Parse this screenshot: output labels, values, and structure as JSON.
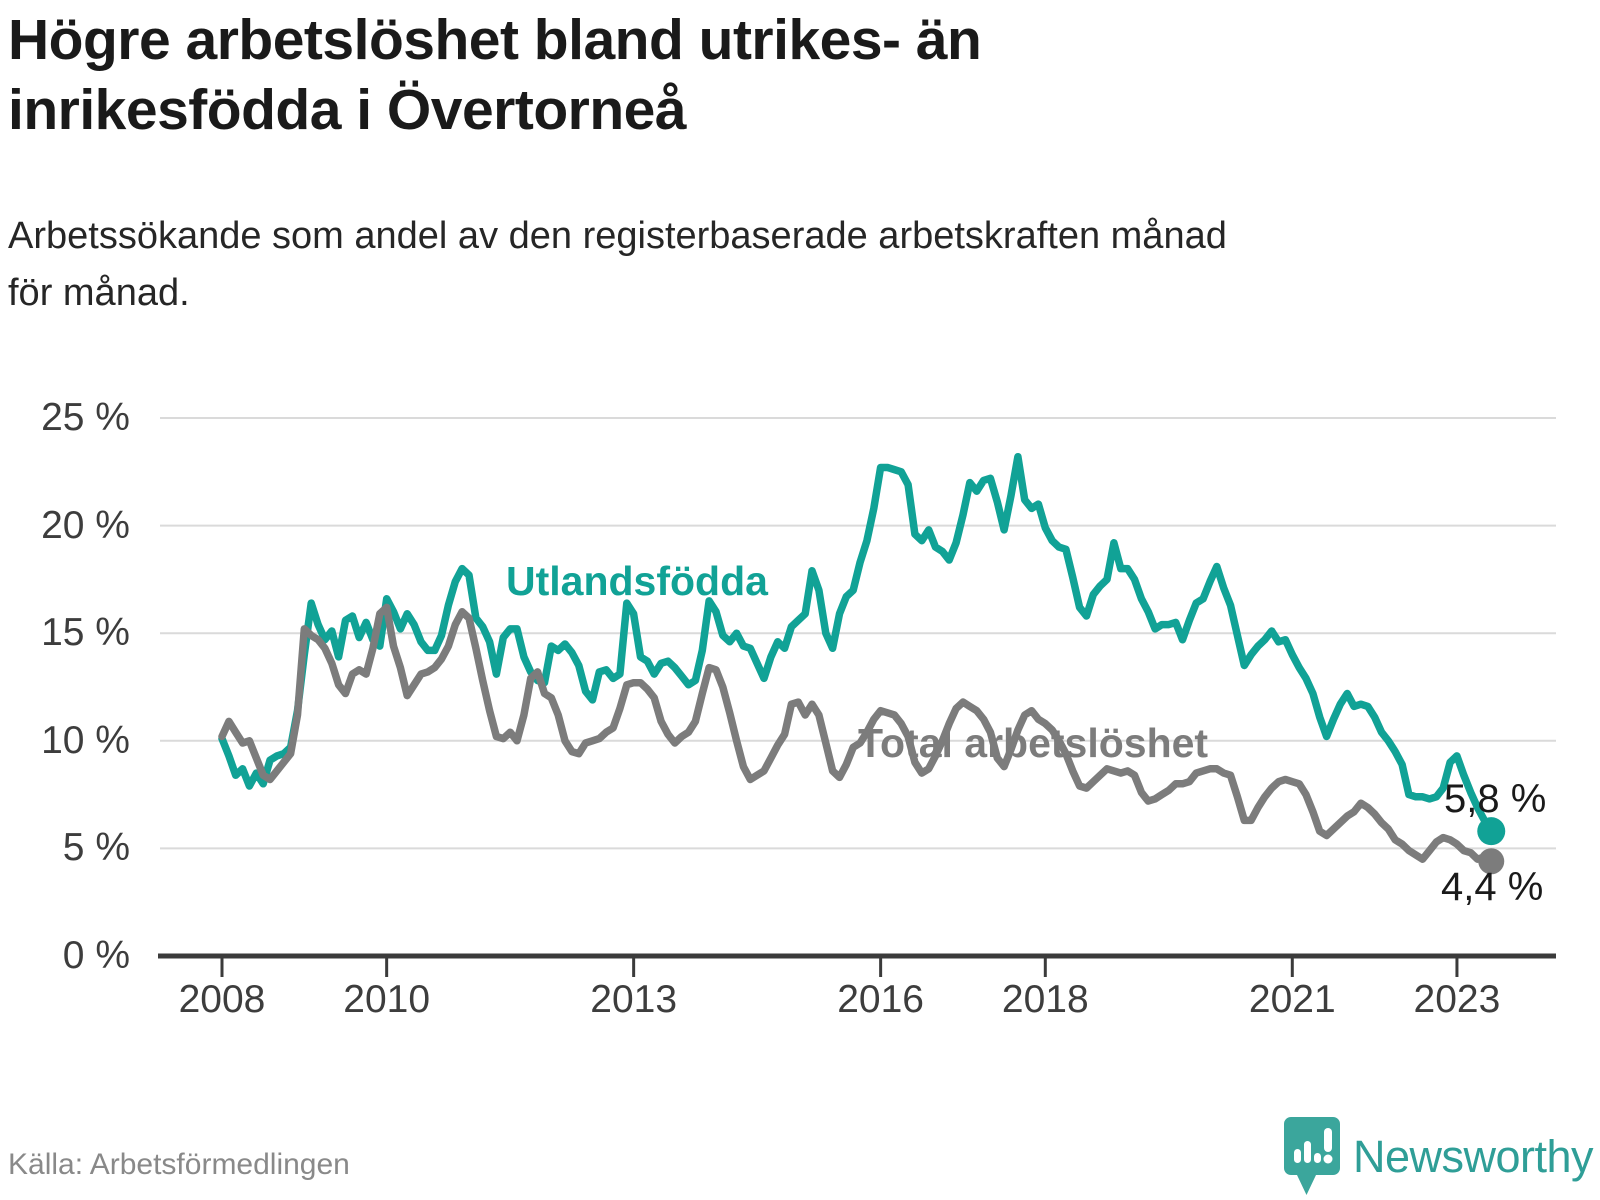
{
  "header": {
    "title": "Högre arbetslöshet bland utrikes- än\ninrikesfödda i Övertorneå",
    "subtitle": "Arbetssökande som andel av den registerbaserade arbetskraften månad\nför månad."
  },
  "footer": {
    "source": "Källa: Arbetsförmedlingen",
    "brand": "Newsworthy"
  },
  "colors": {
    "teal": "#11a296",
    "gray": "#7c7c7c",
    "grid": "#dadada",
    "axis": "#3b3b3b",
    "text": "#1a1a1a",
    "logo": "#3ba69c"
  },
  "chart_data": {
    "type": "line",
    "title": "Högre arbetslöshet bland utrikes- än inrikesfödda i Övertorneå",
    "subtitle": "Arbetssökande som andel av den registerbaserade arbetskraften månad för månad.",
    "unit": "%",
    "xlabel": "",
    "ylabel": "",
    "ylim": [
      0,
      25
    ],
    "yticks": [
      0,
      5,
      10,
      15,
      20,
      25
    ],
    "ytick_labels": [
      "0 %",
      "5 %",
      "10 %",
      "15 %",
      "20 %",
      "25 %"
    ],
    "xticks": [
      2008,
      2010,
      2013,
      2016,
      2018,
      2021,
      2023
    ],
    "xtick_labels": [
      "2008",
      "2010",
      "2013",
      "2016",
      "2018",
      "2021",
      "2023"
    ],
    "x_start_year": 2008,
    "x_resolution": "monthly",
    "x_end": "2023-06",
    "grid": "horizontal",
    "legend": "inline-labels",
    "series": [
      {
        "name": "Utlandsfödda",
        "color": "#11a296",
        "end_label": "5,8 %",
        "end_value": 5.8,
        "values": [
          10.1,
          9.3,
          8.4,
          8.7,
          7.9,
          8.5,
          8.0,
          9.1,
          9.3,
          9.4,
          9.7,
          11.4,
          14.0,
          16.4,
          15.4,
          14.7,
          15.1,
          13.9,
          15.6,
          15.8,
          14.8,
          15.5,
          14.7,
          14.4,
          16.6,
          16.0,
          15.2,
          15.9,
          15.4,
          14.6,
          14.2,
          14.2,
          14.9,
          16.3,
          17.4,
          18.0,
          17.7,
          15.7,
          15.3,
          14.6,
          13.1,
          14.8,
          15.2,
          15.2,
          13.9,
          13.2,
          12.8,
          12.7,
          14.4,
          14.2,
          14.5,
          14.1,
          13.5,
          12.3,
          11.9,
          13.2,
          13.3,
          12.9,
          13.1,
          16.4,
          15.9,
          13.9,
          13.7,
          13.1,
          13.6,
          13.7,
          13.4,
          13.0,
          12.6,
          12.8,
          14.2,
          16.5,
          16.0,
          14.9,
          14.6,
          15.0,
          14.4,
          14.3,
          13.6,
          12.9,
          13.9,
          14.6,
          14.3,
          15.3,
          15.6,
          15.9,
          17.9,
          17.0,
          15.0,
          14.3,
          15.9,
          16.7,
          17.0,
          18.3,
          19.3,
          20.8,
          22.7,
          22.7,
          22.6,
          22.5,
          21.9,
          19.6,
          19.3,
          19.8,
          19.0,
          18.8,
          18.4,
          19.2,
          20.5,
          22.0,
          21.6,
          22.1,
          22.2,
          21.1,
          19.8,
          21.4,
          23.2,
          21.2,
          20.8,
          21.0,
          19.9,
          19.3,
          19.0,
          18.9,
          17.6,
          16.2,
          15.8,
          16.8,
          17.2,
          17.5,
          19.2,
          18.0,
          18.0,
          17.5,
          16.6,
          16.0,
          15.2,
          15.4,
          15.4,
          15.5,
          14.7,
          15.6,
          16.4,
          16.6,
          17.4,
          18.1,
          17.1,
          16.3,
          14.9,
          13.5,
          14.0,
          14.4,
          14.7,
          15.1,
          14.6,
          14.7,
          14.0,
          13.4,
          12.9,
          12.2,
          11.1,
          10.2,
          11.0,
          11.7,
          12.2,
          11.6,
          11.7,
          11.6,
          11.1,
          10.4,
          10.0,
          9.5,
          8.9,
          7.5,
          7.4,
          7.4,
          7.3,
          7.4,
          7.8,
          9.0,
          9.3,
          8.4,
          7.6,
          6.9,
          6.3,
          5.8
        ]
      },
      {
        "name": "Total arbetslöshet",
        "color": "#7c7c7c",
        "end_label": "4,4 %",
        "end_value": 4.4,
        "values": [
          10.2,
          10.9,
          10.4,
          9.9,
          10.0,
          9.2,
          8.4,
          8.2,
          8.6,
          9.0,
          9.4,
          11.2,
          15.2,
          14.9,
          14.7,
          14.3,
          13.6,
          12.6,
          12.2,
          13.1,
          13.3,
          13.1,
          14.3,
          15.9,
          16.2,
          14.4,
          13.4,
          12.1,
          12.6,
          13.1,
          13.2,
          13.4,
          13.8,
          14.4,
          15.4,
          16.0,
          15.7,
          14.3,
          12.8,
          11.4,
          10.2,
          10.1,
          10.4,
          10.0,
          11.2,
          12.9,
          13.2,
          12.2,
          12.0,
          11.2,
          10.0,
          9.5,
          9.4,
          9.9,
          10.0,
          10.1,
          10.4,
          10.6,
          11.5,
          12.6,
          12.7,
          12.7,
          12.4,
          12.0,
          10.9,
          10.3,
          9.9,
          10.2,
          10.4,
          10.9,
          12.2,
          13.4,
          13.3,
          12.5,
          11.3,
          10.0,
          8.8,
          8.2,
          8.4,
          8.6,
          9.2,
          9.8,
          10.3,
          11.7,
          11.8,
          11.2,
          11.7,
          11.2,
          9.9,
          8.6,
          8.3,
          8.9,
          9.7,
          9.9,
          10.4,
          11.0,
          11.4,
          11.3,
          11.2,
          10.8,
          10.2,
          9.0,
          8.5,
          8.7,
          9.3,
          10.0,
          10.8,
          11.5,
          11.8,
          11.6,
          11.4,
          11.0,
          10.4,
          9.2,
          8.8,
          9.6,
          10.5,
          11.2,
          11.4,
          11.0,
          10.8,
          10.5,
          10.0,
          9.4,
          8.6,
          7.9,
          7.8,
          8.1,
          8.4,
          8.7,
          8.6,
          8.5,
          8.6,
          8.4,
          7.6,
          7.2,
          7.3,
          7.5,
          7.7,
          8.0,
          8.0,
          8.1,
          8.5,
          8.6,
          8.7,
          8.7,
          8.5,
          8.4,
          7.4,
          6.3,
          6.3,
          6.9,
          7.4,
          7.8,
          8.1,
          8.2,
          8.1,
          8.0,
          7.5,
          6.7,
          5.8,
          5.6,
          5.9,
          6.2,
          6.5,
          6.7,
          7.1,
          6.9,
          6.6,
          6.2,
          5.9,
          5.4,
          5.2,
          4.9,
          4.7,
          4.5,
          4.9,
          5.3,
          5.5,
          5.4,
          5.2,
          4.9,
          4.8,
          4.5,
          4.6,
          4.4
        ]
      }
    ]
  }
}
